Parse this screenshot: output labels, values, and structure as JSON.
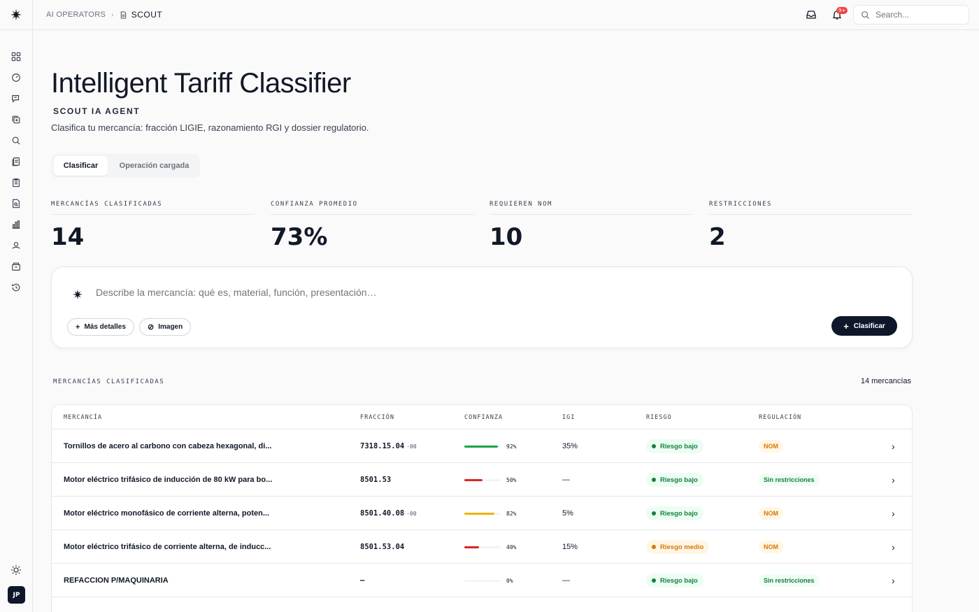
{
  "header": {
    "breadcrumb_parent": "AI OPERATORS",
    "breadcrumb_current": "SCOUT",
    "notification_badge": "9+",
    "search_placeholder": "Search..."
  },
  "sidebar": {
    "items": [
      "dashboard-icon",
      "speed-icon",
      "chat-icon",
      "copy-add-icon",
      "search-doc-icon",
      "documents-icon",
      "clipboard-icon",
      "file-search-icon",
      "bar-chart-icon",
      "agent-icon",
      "packages-icon",
      "history-icon"
    ],
    "user_initials": "JP"
  },
  "page": {
    "title": "Intelligent Tariff Classifier",
    "subtitle": "SCOUT IA AGENT",
    "description": "Clasifica tu mercancía: fracción LIGIE, razonamiento RGI y dossier regulatorio."
  },
  "tabs": [
    {
      "label": "Clasificar",
      "active": true
    },
    {
      "label": "Operación cargada",
      "active": false
    }
  ],
  "stats": [
    {
      "label": "MERCANCÍAS CLASIFICADAS",
      "value": "14"
    },
    {
      "label": "CONFIANZA PROMEDIO",
      "value": "73%"
    },
    {
      "label": "REQUIEREN NOM",
      "value": "10"
    },
    {
      "label": "RESTRICCIONES",
      "value": "2"
    }
  ],
  "composer": {
    "placeholder": "Describe la mercancía: qué es, material, función, presentación…",
    "more_details_label": "Más detalles",
    "image_label": "Imagen",
    "submit_label": "Clasificar"
  },
  "list": {
    "section_title": "MERCANCÍAS CLASIFICADAS",
    "count_label": "14 mercancías",
    "columns": [
      "MERCANCÍA",
      "FRACCIÓN",
      "CONFIANZA",
      "IGI",
      "RIESGO",
      "REGULACIÓN"
    ],
    "rows": [
      {
        "name": "Tornillos de acero al carbono con cabeza hexagonal, di...",
        "fraction": "7318.15.04",
        "suffix": "·00",
        "confidence": 92,
        "confidence_label": "92%",
        "igi": "35%",
        "risk": "Riesgo bajo",
        "risk_level": "low",
        "regulation": "NOM",
        "regulation_type": "nom"
      },
      {
        "name": "Motor eléctrico trifásico de inducción de 80 kW para bo...",
        "fraction": "8501.53",
        "suffix": "",
        "confidence": 50,
        "confidence_label": "50%",
        "igi": "—",
        "risk": "Riesgo bajo",
        "risk_level": "low",
        "regulation": "Sin restricciones",
        "regulation_type": "none"
      },
      {
        "name": "Motor eléctrico monofásico de corriente alterna, poten...",
        "fraction": "8501.40.08",
        "suffix": "·00",
        "confidence": 82,
        "confidence_label": "82%",
        "igi": "5%",
        "risk": "Riesgo bajo",
        "risk_level": "low",
        "regulation": "NOM",
        "regulation_type": "nom"
      },
      {
        "name": "Motor eléctrico trifásico de corriente alterna, de inducc...",
        "fraction": "8501.53.04",
        "suffix": "",
        "confidence": 40,
        "confidence_label": "40%",
        "igi": "15%",
        "risk": "Riesgo medio",
        "risk_level": "medium",
        "regulation": "NOM",
        "regulation_type": "nom"
      },
      {
        "name": "REFACCION P/MAQUINARIA",
        "fraction": "—",
        "suffix": "",
        "confidence": 0,
        "confidence_label": "0%",
        "igi": "—",
        "risk": "Riesgo bajo",
        "risk_level": "low",
        "regulation": "Sin restricciones",
        "regulation_type": "none"
      }
    ]
  },
  "colors": {
    "accent": "#0f172a",
    "bar_high": "#16a34a",
    "bar_mid": "#eab308",
    "bar_low": "#dc2626",
    "risk_low_bg": "#ecfdf3",
    "risk_low_fg": "#15803d",
    "risk_medium_bg": "#fff7e6",
    "risk_medium_fg": "#d97706",
    "nom_bg": "#fff7e6",
    "nom_fg": "#d97706",
    "none_bg": "#f0fdf4",
    "none_fg": "#15803d"
  }
}
